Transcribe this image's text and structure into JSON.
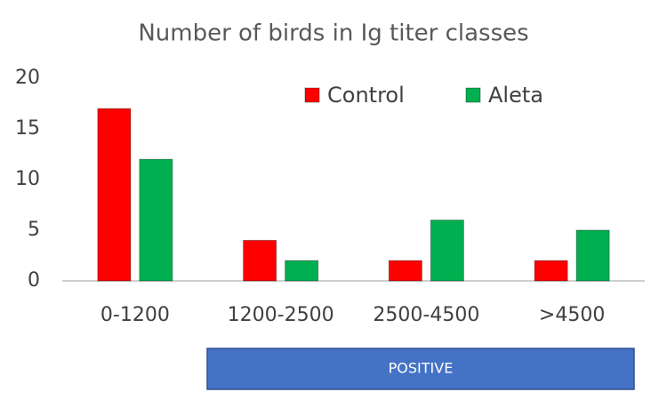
{
  "chart_data": {
    "type": "bar",
    "title": "Number of birds in Ig titer classes",
    "categories": [
      "0-1200",
      "1200-2500",
      "2500-4500",
      ">4500"
    ],
    "series": [
      {
        "name": "Control",
        "color": "#ff0000",
        "values": [
          17,
          4,
          2,
          2
        ]
      },
      {
        "name": "Aleta",
        "color": "#00b050",
        "values": [
          12,
          2,
          6,
          5
        ]
      }
    ],
    "ylim": [
      0,
      20
    ],
    "yticks": [
      0,
      5,
      10,
      15,
      20
    ],
    "grid": false,
    "legend": "top-right",
    "annotation": "POSITIVE"
  }
}
